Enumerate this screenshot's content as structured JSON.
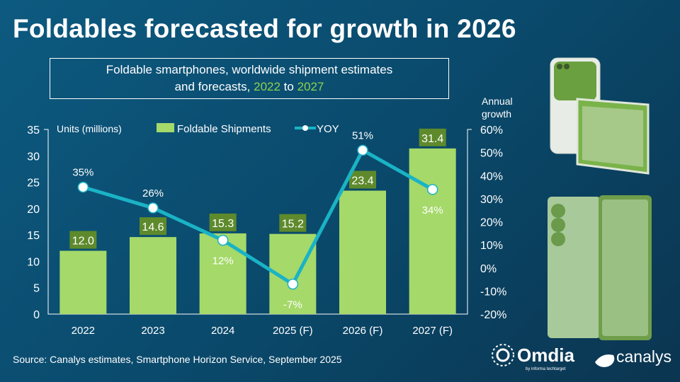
{
  "title": "Foldables forecasted for growth in 2026",
  "subtitle": {
    "line1": "Foldable smartphones, worldwide shipment estimates",
    "line2_prefix": "and forecasts, ",
    "year_start": "2022",
    "to": " to ",
    "year_end": "2027"
  },
  "source": "Source: Canalys estimates, Smartphone Horizon Service, September 2025",
  "logos": {
    "omdia": "Omdia",
    "omdia_sub": "by informa techtarget",
    "canalys": "canalys"
  },
  "colors": {
    "bar": "#a5d96a",
    "bar_label_bg": "#5e8a2c",
    "line": "#1ab3c6",
    "background": "#0a4a6c"
  },
  "chart_data": {
    "type": "bar",
    "categories": [
      "2022",
      "2023",
      "2024",
      "2025 (F)",
      "2026 (F)",
      "2027 (F)"
    ],
    "series": [
      {
        "name": "Foldable Shipments",
        "type": "bar",
        "axis": "left",
        "values": [
          12.0,
          14.6,
          15.3,
          15.2,
          23.4,
          31.4
        ],
        "labels": [
          "12.0",
          "14.6",
          "15.3",
          "15.2",
          "23.4",
          "31.4"
        ]
      },
      {
        "name": "YOY",
        "type": "line",
        "axis": "right",
        "values": [
          35,
          26,
          12,
          -7,
          51,
          34
        ],
        "labels": [
          "35%",
          "26%",
          "12%",
          "-7%",
          "51%",
          "34%"
        ]
      }
    ],
    "ylabel": "Units (millions)",
    "ylim": [
      0,
      35
    ],
    "yticks": [
      "0",
      "5",
      "10",
      "15",
      "20",
      "25",
      "30",
      "35"
    ],
    "y2label": [
      "Annual",
      "growth"
    ],
    "y2lim": [
      -20,
      60
    ],
    "y2ticks": [
      "-20%",
      "-10%",
      "0%",
      "10%",
      "20%",
      "30%",
      "40%",
      "50%",
      "60%"
    ],
    "legend": "top",
    "grid": false
  }
}
